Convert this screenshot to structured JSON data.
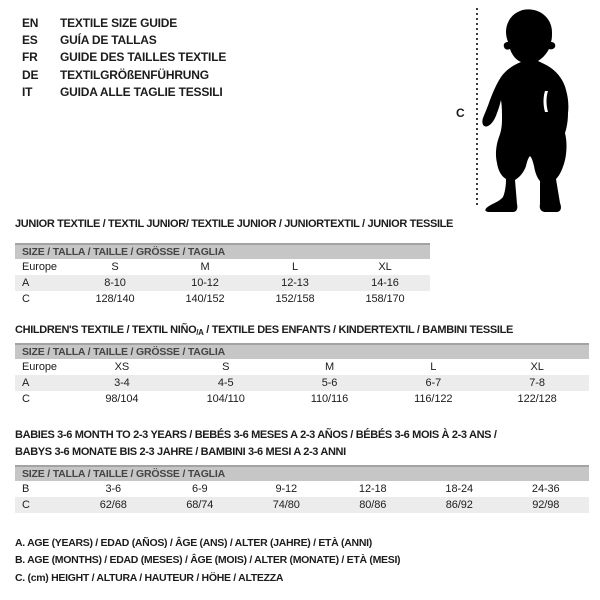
{
  "language_list": [
    {
      "code": "EN",
      "title": "TEXTILE SIZE GUIDE"
    },
    {
      "code": "ES",
      "title": "GUÍA DE TALLAS"
    },
    {
      "code": "FR",
      "title": "GUIDE DES TAILLES TEXTILE"
    },
    {
      "code": "DE",
      "title": "TEXTILGRÖßENFÜHRUNG"
    },
    {
      "code": "IT",
      "title": "GUIDA ALLE TAGLIE TESSILI"
    }
  ],
  "figure": {
    "icon": "baby-silhouette",
    "measure_label": "C"
  },
  "colors": {
    "text": "#1c1c1c",
    "header_bar": "#c6c6c6",
    "header_bar_border": "#a3a3a3",
    "shaded_row": "#ececec",
    "silhouette": "#000000"
  },
  "tables": [
    {
      "title_lines": [
        [
          {
            "text": "JUNIOR TEXTILE / TEXTIL JUNIOR/ TEXTILE JUNIOR / JUNIORTEXTIL / JUNIOR TESSILE",
            "sub": false
          }
        ]
      ],
      "size_header": "SIZE / TALLA / TAILLE / GRÖSSE / TAGLIA",
      "rows": [
        {
          "label": "Europe",
          "values": [
            "S",
            "M",
            "L",
            "XL"
          ],
          "shaded": false
        },
        {
          "label": "A",
          "values": [
            "8-10",
            "10-12",
            "12-13",
            "14-16"
          ],
          "shaded": true
        },
        {
          "label": "C",
          "values": [
            "128/140",
            "140/152",
            "152/158",
            "158/170"
          ],
          "shaded": false
        }
      ]
    },
    {
      "title_lines": [
        [
          {
            "text": "CHILDREN'S TEXTILE / TEXTIL NIÑO",
            "sub": false
          },
          {
            "text": "/A",
            "sub": true
          },
          {
            "text": " / TEXTILE DES ENFANTS / KINDERTEXTIL / BAMBINI TESSILE",
            "sub": false
          }
        ]
      ],
      "size_header": "SIZE / TALLA / TAILLE / GRÖSSE / TAGLIA",
      "rows": [
        {
          "label": "Europe",
          "values": [
            "XS",
            "S",
            "M",
            "L",
            "XL"
          ],
          "shaded": false
        },
        {
          "label": "A",
          "values": [
            "3-4",
            "4-5",
            "5-6",
            "6-7",
            "7-8"
          ],
          "shaded": true
        },
        {
          "label": "C",
          "values": [
            "98/104",
            "104/110",
            "110/116",
            "116/122",
            "122/128"
          ],
          "shaded": false
        }
      ]
    },
    {
      "title_lines": [
        [
          {
            "text": "BABIES 3-6 MONTH TO 2-3 YEARS / BEBÉS 3-6 MESES A 2-3 AÑOS / BÉBÉS 3-6 MOIS À 2-3 ANS /",
            "sub": false
          }
        ],
        [
          {
            "text": "BABYS 3-6 MONATE BIS 2-3 JAHRE / BAMBINI 3-6 MESI A 2-3 ANNI",
            "sub": false
          }
        ]
      ],
      "size_header": "SIZE / TALLA / TAILLE / GRÖSSE / TAGLIA",
      "rows": [
        {
          "label": "B",
          "values": [
            "3-6",
            "6-9",
            "9-12",
            "12-18",
            "18-24",
            "24-36"
          ],
          "shaded": false
        },
        {
          "label": "C",
          "values": [
            "62/68",
            "68/74",
            "74/80",
            "80/86",
            "86/92",
            "92/98"
          ],
          "shaded": true
        }
      ]
    }
  ],
  "footnotes": [
    "A. AGE (YEARS) / EDAD (AÑOS) / ÂGE (ANS) / ALTER (JAHRE) / ETÀ (ANNI)",
    "B. AGE (MONTHS) / EDAD (MESES) / ÂGE (MOIS) / ALTER (MONATE) / ETÀ (MESI)",
    "C. (cm) HEIGHT / ALTURA / HAUTEUR / HÖHE / ALTEZZA"
  ]
}
